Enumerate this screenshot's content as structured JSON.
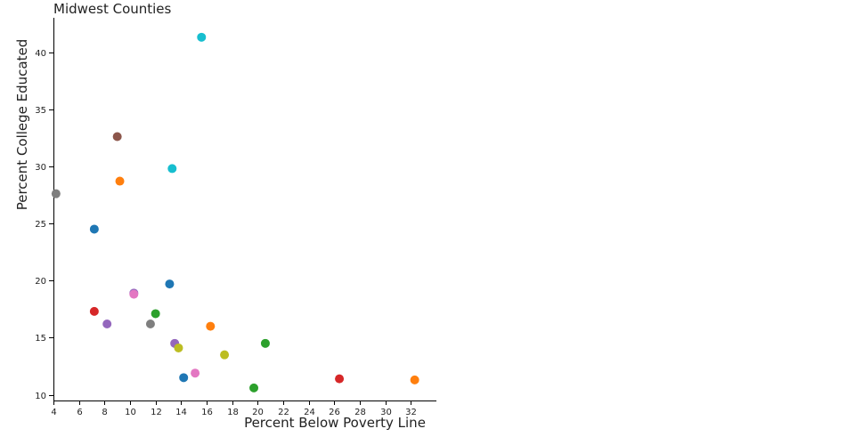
{
  "chart_data": {
    "type": "scatter",
    "title": "Midwest Counties",
    "xlabel": "Percent Below Poverty Line",
    "ylabel": "Percent College Educated",
    "xlim": [
      4,
      34
    ],
    "ylim": [
      9.5,
      43
    ],
    "xticks": [
      4,
      6,
      8,
      10,
      12,
      14,
      16,
      18,
      20,
      22,
      24,
      26,
      28,
      30,
      32
    ],
    "yticks": [
      10,
      15,
      20,
      25,
      30,
      35,
      40
    ],
    "grid": false,
    "legend": "none",
    "points": [
      {
        "x": 4.2,
        "y": 27.6,
        "color": "#7f7f7f"
      },
      {
        "x": 7.2,
        "y": 24.5,
        "color": "#1f77b4"
      },
      {
        "x": 7.2,
        "y": 17.3,
        "color": "#d62728"
      },
      {
        "x": 8.2,
        "y": 16.2,
        "color": "#9467bd"
      },
      {
        "x": 9.0,
        "y": 32.6,
        "color": "#8c564b"
      },
      {
        "x": 9.2,
        "y": 28.7,
        "color": "#ff7f0e"
      },
      {
        "x": 10.3,
        "y": 18.9,
        "color": "#9467bd"
      },
      {
        "x": 10.3,
        "y": 18.8,
        "color": "#e377c2"
      },
      {
        "x": 11.6,
        "y": 16.2,
        "color": "#7f7f7f"
      },
      {
        "x": 12.0,
        "y": 17.1,
        "color": "#2ca02c"
      },
      {
        "x": 13.1,
        "y": 19.7,
        "color": "#1f77b4"
      },
      {
        "x": 13.3,
        "y": 29.8,
        "color": "#17becf"
      },
      {
        "x": 13.5,
        "y": 14.5,
        "color": "#9467bd"
      },
      {
        "x": 13.8,
        "y": 14.1,
        "color": "#bcbd22"
      },
      {
        "x": 14.2,
        "y": 11.5,
        "color": "#1f77b4"
      },
      {
        "x": 15.1,
        "y": 11.9,
        "color": "#e377c2"
      },
      {
        "x": 15.6,
        "y": 41.3,
        "color": "#17becf"
      },
      {
        "x": 16.3,
        "y": 16.0,
        "color": "#ff7f0e"
      },
      {
        "x": 17.4,
        "y": 13.5,
        "color": "#bcbd22"
      },
      {
        "x": 19.7,
        "y": 10.6,
        "color": "#2ca02c"
      },
      {
        "x": 20.6,
        "y": 14.5,
        "color": "#2ca02c"
      },
      {
        "x": 26.4,
        "y": 11.4,
        "color": "#d62728"
      },
      {
        "x": 32.3,
        "y": 11.3,
        "color": "#ff7f0e"
      }
    ]
  }
}
